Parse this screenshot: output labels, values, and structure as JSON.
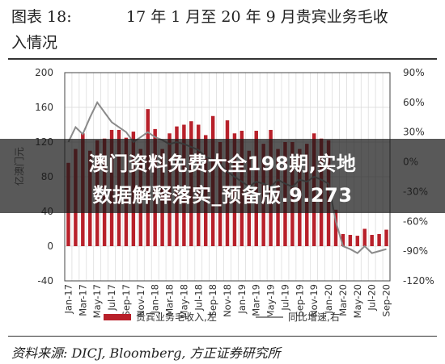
{
  "figure": {
    "label": "图表 18:",
    "title_line1": "17 年 1 月至 20 年 9 月贵宾业务毛收",
    "title_line2": "入情况",
    "source": "资料来源: DICJ, Bloomberg, 方正证券研究所"
  },
  "overlay": {
    "line1": "澳门资料免费大全198期,实地",
    "line2": "数据解释落实_预备版.9.273"
  },
  "colors": {
    "bar": "#b8202a",
    "line": "#8a8a8a",
    "grid": "#d8d8d8",
    "axis": "#444444"
  },
  "chart_data": {
    "type": "bar+line",
    "left_axis": {
      "label": "亿澳门元",
      "ylim": [
        -40,
        200
      ],
      "ticks": [
        200,
        160,
        120,
        80,
        40,
        0,
        -40
      ]
    },
    "right_axis": {
      "ylim": [
        -120,
        90
      ],
      "ticks": [
        "90%",
        "60%",
        "30%",
        "0%",
        "-30%",
        "-60%",
        "-90%",
        "-120%"
      ],
      "tick_values": [
        90,
        60,
        30,
        0,
        -30,
        -60,
        -90,
        -120
      ]
    },
    "tick_labels": [
      "Jan-17",
      "Mar-17",
      "May-17",
      "Jul-17",
      "Sep-17",
      "Nov-17",
      "Jan-18",
      "Mar-18",
      "May-18",
      "Jul-18",
      "Sep-18",
      "Nov-18",
      "Jan-19",
      "Mar-19",
      "May-19",
      "Jul-19",
      "Sep-19",
      "Nov-19",
      "Jan-20",
      "Mar-20",
      "May-20",
      "Jul-20",
      "Sep-20"
    ],
    "x": [
      "Jan-17",
      "Feb-17",
      "Mar-17",
      "Apr-17",
      "May-17",
      "Jun-17",
      "Jul-17",
      "Aug-17",
      "Sep-17",
      "Oct-17",
      "Nov-17",
      "Dec-17",
      "Jan-18",
      "Feb-18",
      "Mar-18",
      "Apr-18",
      "May-18",
      "Jun-18",
      "Jul-18",
      "Aug-18",
      "Sep-18",
      "Oct-18",
      "Nov-18",
      "Dec-18",
      "Jan-19",
      "Feb-19",
      "Mar-19",
      "Apr-19",
      "May-19",
      "Jun-19",
      "Jul-19",
      "Aug-19",
      "Sep-19",
      "Oct-19",
      "Nov-19",
      "Dec-19",
      "Jan-20",
      "Feb-20",
      "Mar-20",
      "Apr-20",
      "May-20",
      "Jun-20",
      "Jul-20",
      "Aug-20",
      "Sep-20"
    ],
    "series": [
      {
        "name": "贵宾业务毛收入,左",
        "axis": "left",
        "type": "bar",
        "values": [
          96,
          112,
          130,
          110,
          122,
          124,
          134,
          134,
          125,
          132,
          112,
          158,
          135,
          112,
          130,
          138,
          140,
          144,
          140,
          128,
          150,
          120,
          145,
          130,
          133,
          110,
          133,
          118,
          134,
          112,
          120,
          120,
          112,
          118,
          130,
          124,
          122,
          42,
          14,
          13,
          12,
          20,
          13,
          14,
          19
        ]
      },
      {
        "name": "同比增速,右",
        "axis": "right",
        "type": "line",
        "values": [
          20,
          35,
          28,
          45,
          60,
          50,
          40,
          35,
          30,
          20,
          25,
          30,
          25,
          22,
          18,
          20,
          18,
          15,
          12,
          5,
          2,
          -2,
          -10,
          -15,
          -20,
          -25,
          -20,
          -22,
          -25,
          -18,
          -22,
          -25,
          -18,
          -20,
          -15,
          -18,
          -22,
          -60,
          -85,
          -88,
          -92,
          -85,
          -92,
          -90,
          -88
        ]
      }
    ]
  }
}
